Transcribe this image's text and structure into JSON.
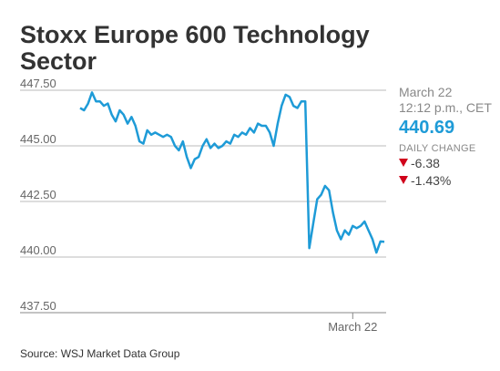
{
  "header": {
    "title": "Stoxx Europe 600 Technology Sector"
  },
  "side_panel": {
    "date": "March 22",
    "time": "12:12 p.m., CET",
    "price": "440.69",
    "daily_change_label": "DAILY CHANGE",
    "change_points": "-6.38",
    "change_percent": "-1.43%"
  },
  "source": "Source: WSJ Market Data Group",
  "colors": {
    "line": "#1e9bd7",
    "down": "#d0021b",
    "grid": "#bbbbbb"
  },
  "chart_data": {
    "type": "line",
    "title": "Stoxx Europe 600 Technology Sector",
    "xlabel": "",
    "ylabel": "",
    "ylim": [
      437.5,
      447.5
    ],
    "y_ticks": [
      {
        "value": 447.5,
        "label": "447.50"
      },
      {
        "value": 445.0,
        "label": "445.00"
      },
      {
        "value": 442.5,
        "label": "442.50"
      },
      {
        "value": 440.0,
        "label": "440.00"
      },
      {
        "value": 437.5,
        "label": "437.50"
      }
    ],
    "x_ticks": [
      {
        "index": 69,
        "label": "March 22"
      }
    ],
    "grid": true,
    "series": [
      {
        "values": [
          446.7,
          446.6,
          446.9,
          447.4,
          447.0,
          447.0,
          446.8,
          446.9,
          446.4,
          446.1,
          446.6,
          446.4,
          446.0,
          446.3,
          445.9,
          445.2,
          445.1,
          445.7,
          445.5,
          445.6,
          445.5,
          445.4,
          445.5,
          445.4,
          445.0,
          444.8,
          445.2,
          444.5,
          444.0,
          444.4,
          444.5,
          445.0,
          445.3,
          444.9,
          445.1,
          444.9,
          445.0,
          445.2,
          445.1,
          445.5,
          445.4,
          445.6,
          445.5,
          445.8,
          445.6,
          446.0,
          445.9,
          445.9,
          445.6,
          445.0,
          446.0,
          446.8,
          447.3,
          447.2,
          446.8,
          446.7,
          447.0,
          447.0,
          440.4,
          441.5,
          442.6,
          442.8,
          443.2,
          443.0,
          442.0,
          441.2,
          440.8,
          441.2,
          441.0,
          441.4,
          441.3,
          441.4,
          441.6,
          441.2,
          440.8,
          440.2,
          440.7,
          440.69
        ]
      }
    ]
  }
}
